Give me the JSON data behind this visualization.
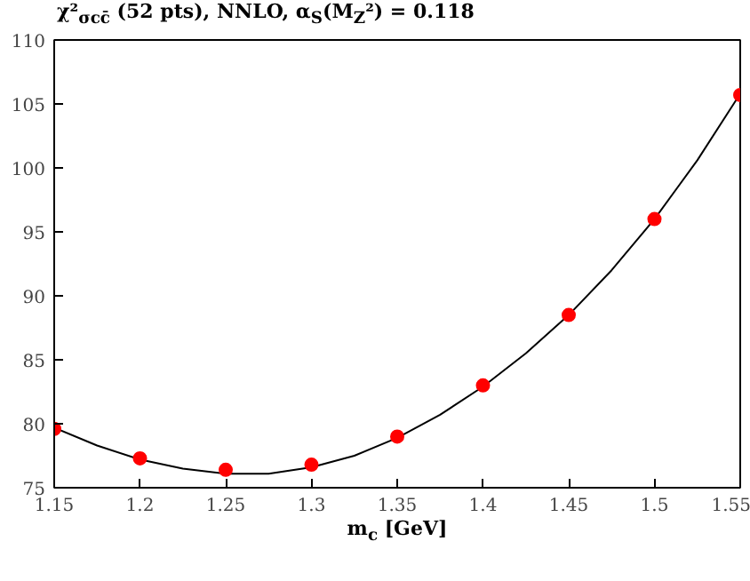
{
  "chart_data": {
    "type": "scatter",
    "title": "χ²$_{σcc̄}$ (52 pts), NNLO, α$_{S}$(M$_{Z}$²) = 0.118",
    "xlabel": "m$_{c}$ [GeV]",
    "xlim": [
      1.15,
      1.55
    ],
    "ylim": [
      75,
      110
    ],
    "xticks": [
      {
        "value": 1.15,
        "label": "1.15"
      },
      {
        "value": 1.2,
        "label": "1.2"
      },
      {
        "value": 1.25,
        "label": "1.25"
      },
      {
        "value": 1.3,
        "label": "1.3"
      },
      {
        "value": 1.35,
        "label": "1.35"
      },
      {
        "value": 1.4,
        "label": "1.4"
      },
      {
        "value": 1.45,
        "label": "1.45"
      },
      {
        "value": 1.5,
        "label": "1.5"
      },
      {
        "value": 1.55,
        "label": "1.55"
      }
    ],
    "yticks": [
      75,
      80,
      85,
      90,
      95,
      100,
      105,
      110
    ],
    "grid": false,
    "marker": "circle",
    "series": [
      {
        "type": "line",
        "marker": "none",
        "color": "#000000",
        "x": [
          1.15,
          1.175,
          1.2,
          1.225,
          1.25,
          1.275,
          1.3,
          1.325,
          1.35,
          1.375,
          1.4,
          1.425,
          1.45,
          1.475,
          1.5,
          1.525,
          1.55
        ],
        "values": [
          79.7,
          78.3,
          77.2,
          76.5,
          76.1,
          76.1,
          76.6,
          77.5,
          78.9,
          80.7,
          82.9,
          85.5,
          88.5,
          92.0,
          96.0,
          100.6,
          105.8
        ]
      },
      {
        "color": "#ff0000",
        "x": [
          1.15,
          1.2,
          1.25,
          1.3,
          1.35,
          1.4,
          1.45,
          1.5,
          1.55
        ],
        "values": [
          79.6,
          77.3,
          76.4,
          76.8,
          79.0,
          83.0,
          88.5,
          96.0,
          105.7
        ]
      }
    ]
  }
}
